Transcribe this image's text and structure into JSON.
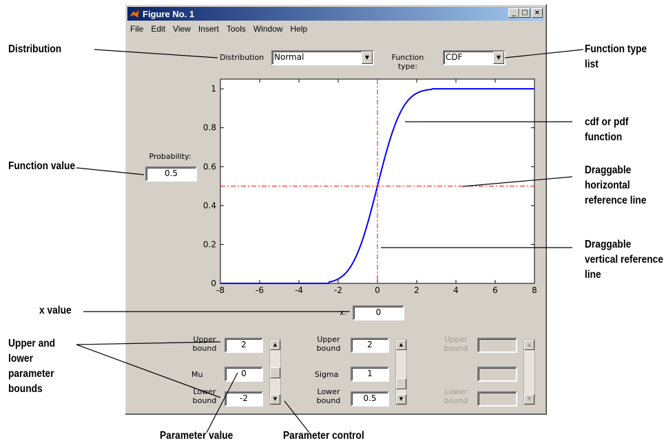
{
  "window": {
    "title": "Figure No. 1",
    "menus": [
      "File",
      "Edit",
      "View",
      "Insert",
      "Tools",
      "Window",
      "Help"
    ]
  },
  "controls": {
    "distribution_label": "Distribution",
    "distribution_value": "Normal",
    "function_type_label": "Function type:",
    "function_type_value": "CDF",
    "probability_label": "Probability:",
    "probability_value": "0.5",
    "x_label": "x:",
    "x_value": "0"
  },
  "params": [
    {
      "upper_label": "Upper bound",
      "upper": "2",
      "name": "Mu",
      "value": "0",
      "lower_label": "Lower bound",
      "lower": "-2",
      "enabled": true
    },
    {
      "upper_label": "Upper bound",
      "upper": "2",
      "name": "Sigma",
      "value": "1",
      "lower_label": "Lower bound",
      "lower": "0.5",
      "enabled": true
    },
    {
      "upper_label": "Upper bound",
      "upper": "",
      "name": "",
      "value": "",
      "lower_label": "Lower bound",
      "lower": "",
      "enabled": false
    }
  ],
  "callouts": {
    "distribution": "Distribution",
    "function_type": "Function type list",
    "cdf_pdf": "cdf or pdf function",
    "horizontal_ref": "Draggable horizontal reference line",
    "vertical_ref": "Draggable vertical reference line",
    "function_value": "Function value",
    "x_value": "x value",
    "bounds": "Upper and lower parameter bounds",
    "param_value": "Parameter value",
    "param_control": "Parameter control"
  },
  "chart_data": {
    "type": "line",
    "title": "",
    "xlabel": "",
    "ylabel": "",
    "xlim": [
      -8,
      8
    ],
    "ylim": [
      0,
      1.05
    ],
    "xticks": [
      "-8",
      "-6",
      "-4",
      "-2",
      "0",
      "2",
      "4",
      "6",
      "8"
    ],
    "yticks": [
      "0",
      "0.2",
      "0.4",
      "0.6",
      "0.8",
      "1"
    ],
    "series": [
      {
        "color": "#0000ff",
        "distribution": "Normal",
        "mu": 0,
        "sigma": 1,
        "lower_clip": -2.5,
        "upper_clip": 2.8
      }
    ],
    "reference_lines": {
      "x": 0,
      "y": 0.5,
      "color": "#ff0000"
    }
  }
}
